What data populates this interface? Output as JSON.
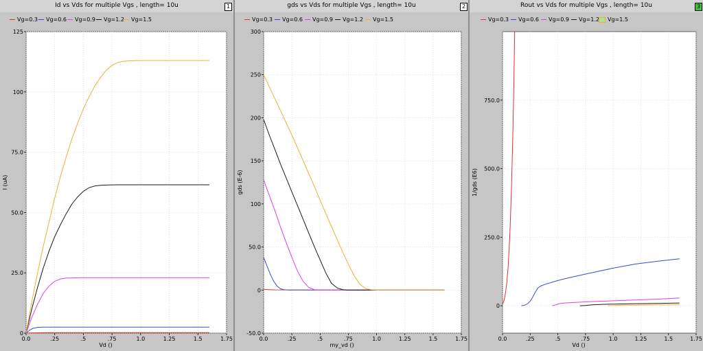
{
  "panels": [
    {
      "title": "Id vs Vds for multiple Vgs , length=  10u",
      "badge": "1",
      "badge_highlight": false
    },
    {
      "title": "gds vs Vds for multiple Vgs , length=  10u",
      "badge": "2",
      "badge_highlight": false
    },
    {
      "title": "Rout vs Vds for multiple Vgs , length=  10u",
      "badge": "3",
      "badge_highlight": true
    }
  ],
  "colors": {
    "Vg=0.3": "#e0302a",
    "Vg=0.6": "#3a4ad8",
    "Vg=0.9": "#e040e8",
    "Vg=1.2": "#1a1a1a",
    "Vg=1.5": "#f0b030"
  },
  "chart_data": [
    {
      "type": "line",
      "title": "Id vs Vds for multiple Vgs , length=  10u",
      "xlabel": "Vd ()",
      "ylabel": "I (uA)",
      "xlim": [
        0,
        1.75
      ],
      "ylim": [
        0,
        125
      ],
      "xticks": [
        "0.0",
        ".25",
        ".5",
        ".75",
        "1.0",
        "1.25",
        "1.5",
        "1.75"
      ],
      "xtick_values": [
        0,
        0.25,
        0.5,
        0.75,
        1.0,
        1.25,
        1.5,
        1.75
      ],
      "yticks": [
        "0",
        "25.0",
        "50.0",
        "75.0",
        "100",
        "125"
      ],
      "ytick_values": [
        0,
        25,
        50,
        75,
        100,
        125
      ],
      "grid": true,
      "legend": "top-left",
      "series": [
        {
          "name": "Vg=0.3",
          "x": [
            0,
            0.05,
            0.1,
            0.2,
            1.6
          ],
          "y": [
            0,
            0.1,
            0.15,
            0.2,
            0.2
          ]
        },
        {
          "name": "Vg=0.6",
          "x": [
            0,
            0.03,
            0.06,
            0.1,
            0.15,
            0.25,
            1.6
          ],
          "y": [
            0,
            1.2,
            2.0,
            2.4,
            2.5,
            2.5,
            2.5
          ]
        },
        {
          "name": "Vg=0.9",
          "x": [
            0,
            0.05,
            0.1,
            0.15,
            0.2,
            0.25,
            0.3,
            0.35,
            0.4,
            0.5,
            1.6
          ],
          "y": [
            0,
            6.5,
            12,
            16.5,
            19.5,
            21.5,
            22.5,
            22.8,
            22.9,
            23,
            23
          ]
        },
        {
          "name": "Vg=1.2",
          "x": [
            0,
            0.05,
            0.1,
            0.15,
            0.2,
            0.25,
            0.3,
            0.35,
            0.4,
            0.45,
            0.5,
            0.55,
            0.6,
            0.65,
            0.7,
            0.8,
            1.6
          ],
          "y": [
            0,
            10,
            19,
            27,
            34,
            40,
            45,
            49.5,
            53.5,
            56.5,
            58.8,
            60.3,
            61,
            61.3,
            61.4,
            61.5,
            61.5
          ]
        },
        {
          "name": "Vg=1.5",
          "x": [
            0,
            0.05,
            0.1,
            0.15,
            0.2,
            0.25,
            0.3,
            0.35,
            0.4,
            0.45,
            0.5,
            0.55,
            0.6,
            0.65,
            0.7,
            0.75,
            0.8,
            0.85,
            0.9,
            1.0,
            1.6
          ],
          "y": [
            0,
            13,
            25,
            36,
            46,
            56,
            65,
            73,
            80.5,
            87,
            93,
            98,
            102.5,
            106,
            109,
            111,
            112.2,
            112.7,
            112.9,
            113,
            113
          ]
        }
      ]
    },
    {
      "type": "line",
      "title": "gds vs Vds for multiple Vgs , length=  10u",
      "xlabel": "my_vd ()",
      "ylabel": "gds (E-6)",
      "xlim": [
        0,
        1.75
      ],
      "ylim": [
        -50,
        300
      ],
      "xticks": [
        "0.0",
        ".25",
        ".5",
        ".75",
        "1.0",
        "1.25",
        "1.5",
        "1.75"
      ],
      "xtick_values": [
        0,
        0.25,
        0.5,
        0.75,
        1.0,
        1.25,
        1.5,
        1.75
      ],
      "yticks": [
        "-50.0",
        "0",
        "50.0",
        "100",
        "150",
        "200",
        "250",
        "300"
      ],
      "ytick_values": [
        -50,
        0,
        50,
        100,
        150,
        200,
        250,
        300
      ],
      "grid": true,
      "legend": "top-left",
      "series": [
        {
          "name": "Vg=0.3",
          "x": [
            0,
            0.05,
            0.1,
            1.6
          ],
          "y": [
            0.8,
            0.5,
            0.2,
            0
          ]
        },
        {
          "name": "Vg=0.6",
          "x": [
            0,
            0.03,
            0.06,
            0.09,
            0.12,
            0.15,
            0.18,
            0.22,
            0.3,
            1.6
          ],
          "y": [
            38,
            28,
            18,
            10,
            4.5,
            1.5,
            0.5,
            0,
            0,
            0
          ]
        },
        {
          "name": "Vg=0.9",
          "x": [
            0,
            0.05,
            0.1,
            0.15,
            0.2,
            0.25,
            0.3,
            0.35,
            0.4,
            0.45,
            0.5,
            1.6
          ],
          "y": [
            128,
            110,
            92,
            73,
            55,
            38,
            22,
            10,
            3,
            0.5,
            0,
            0
          ]
        },
        {
          "name": "Vg=1.2",
          "x": [
            0,
            0.05,
            0.1,
            0.15,
            0.2,
            0.25,
            0.3,
            0.35,
            0.4,
            0.45,
            0.5,
            0.55,
            0.6,
            0.65,
            0.7,
            0.75,
            1.0
          ],
          "y": [
            198,
            180,
            163,
            146,
            130,
            114,
            98,
            82,
            66,
            50,
            35,
            20,
            8,
            2.5,
            0.5,
            0,
            0
          ]
        },
        {
          "name": "Vg=1.5",
          "x": [
            0,
            0.05,
            0.1,
            0.15,
            0.2,
            0.25,
            0.3,
            0.35,
            0.4,
            0.45,
            0.5,
            0.55,
            0.6,
            0.65,
            0.7,
            0.75,
            0.8,
            0.85,
            0.9,
            0.95,
            1.0,
            1.6
          ],
          "y": [
            250,
            236,
            222,
            208,
            194,
            180,
            165,
            150,
            135,
            120,
            104,
            89,
            74,
            59,
            44,
            30,
            17,
            7,
            2,
            0.5,
            0,
            0
          ]
        }
      ]
    },
    {
      "type": "line",
      "title": "Rout vs Vds for multiple Vgs , length=  10u",
      "xlabel": "Vd ()",
      "ylabel": "1/gds (E6)",
      "xlim": [
        0,
        1.75
      ],
      "ylim": [
        -100,
        1000
      ],
      "xticks": [
        "0.0",
        ".25",
        ".5",
        ".75",
        "1.0",
        "1.25",
        "1.5",
        "1.75"
      ],
      "xtick_values": [
        0,
        0.25,
        0.5,
        0.75,
        1.0,
        1.25,
        1.5,
        1.75
      ],
      "yticks": [
        "0",
        "250.0",
        "500.0",
        "750.0"
      ],
      "ytick_values": [
        0,
        250,
        500,
        750
      ],
      "grid": true,
      "legend": "top-left",
      "series": [
        {
          "name": "Vg=0.3",
          "x": [
            0,
            0.01,
            0.02,
            0.03,
            0.04,
            0.05,
            0.06,
            0.07,
            0.08,
            0.09,
            0.1,
            0.105,
            0.11
          ],
          "y": [
            5,
            15,
            30,
            55,
            90,
            140,
            210,
            300,
            420,
            570,
            750,
            870,
            1000
          ]
        },
        {
          "name": "Vg=0.6",
          "x": [
            0.17,
            0.2,
            0.23,
            0.26,
            0.29,
            0.32,
            0.35,
            0.4,
            0.5,
            0.6,
            0.8,
            1.0,
            1.2,
            1.4,
            1.6
          ],
          "y": [
            0,
            2,
            8,
            22,
            45,
            65,
            73,
            80,
            92,
            102,
            120,
            137,
            152,
            162,
            171
          ]
        },
        {
          "name": "Vg=0.9",
          "x": [
            0.45,
            0.48,
            0.52,
            0.56,
            0.6,
            0.7,
            0.8,
            1.0,
            1.2,
            1.4,
            1.6
          ],
          "y": [
            0,
            3,
            8,
            10,
            11,
            13,
            15,
            18,
            21,
            24,
            28
          ]
        },
        {
          "name": "Vg=1.2",
          "x": [
            0.7,
            0.75,
            0.8,
            0.85,
            0.9,
            1.0,
            1.2,
            1.4,
            1.6
          ],
          "y": [
            0,
            1,
            3,
            4,
            5,
            6,
            7.5,
            8.5,
            10
          ]
        },
        {
          "name": "Vg=1.5",
          "x": [
            0.95,
            1.0,
            1.05,
            1.1,
            1.2,
            1.4,
            1.6
          ],
          "y": [
            0,
            0.5,
            1.5,
            2,
            2.5,
            3,
            3.5
          ]
        }
      ]
    }
  ]
}
